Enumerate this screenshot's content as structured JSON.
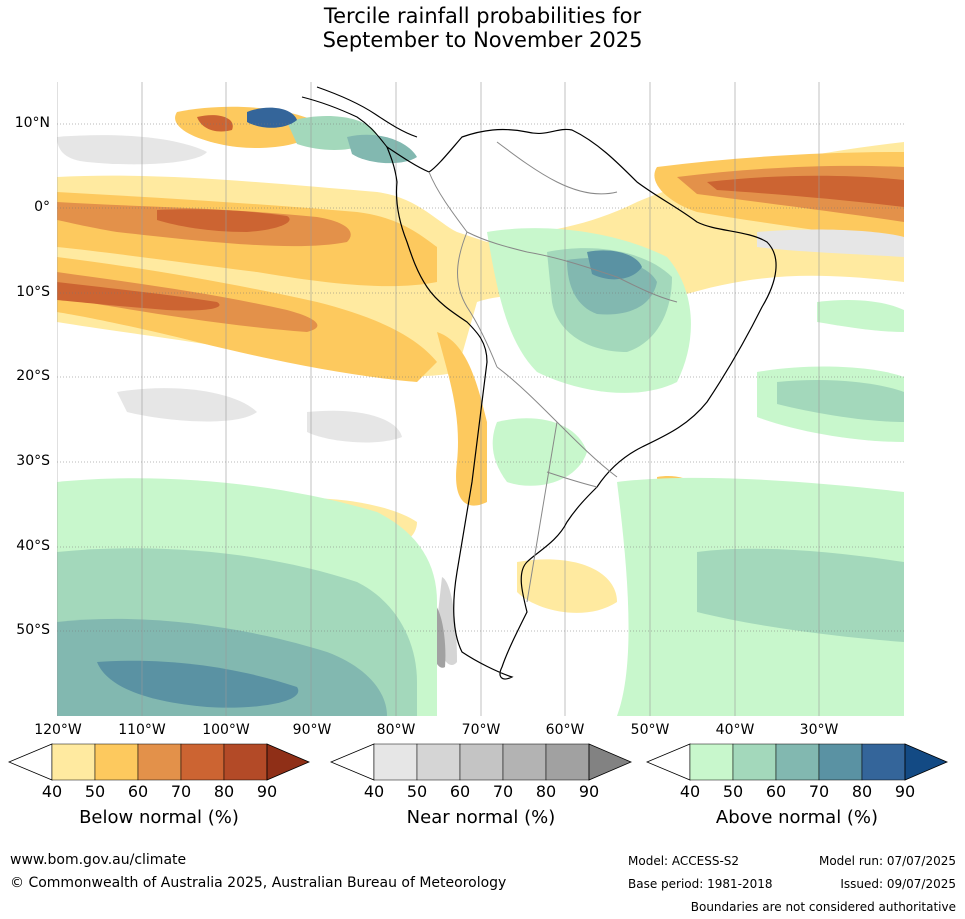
{
  "title": {
    "line1": "Tercile rainfall probabilities for",
    "line2": "September to November 2025"
  },
  "map": {
    "lat_labels": [
      "10°N",
      "0°",
      "10°S",
      "20°S",
      "30°S",
      "40°S",
      "50°S"
    ],
    "lon_labels": [
      "120°W",
      "110°W",
      "100°W",
      "90°W",
      "80°W",
      "70°W",
      "60°W",
      "50°W",
      "40°W",
      "30°W"
    ]
  },
  "colorbars": [
    {
      "title": "Below normal (%)",
      "ticks": [
        "40",
        "50",
        "60",
        "70",
        "80",
        "90"
      ],
      "colors": [
        "#ffeaa0",
        "#fdc95e",
        "#e3914a",
        "#cc6432",
        "#b34a27",
        "#8f2f17"
      ]
    },
    {
      "title": "Near normal (%)",
      "ticks": [
        "40",
        "50",
        "60",
        "70",
        "80",
        "90"
      ],
      "colors": [
        "#e6e6e6",
        "#d5d5d5",
        "#c4c4c4",
        "#b3b3b3",
        "#a1a1a1",
        "#828282"
      ]
    },
    {
      "title": "Above normal (%)",
      "ticks": [
        "40",
        "50",
        "60",
        "70",
        "80",
        "90"
      ],
      "colors": [
        "#c8f7cc",
        "#a3d8bb",
        "#82b8b0",
        "#5a92a3",
        "#34659a",
        "#134a84"
      ]
    }
  ],
  "footer": {
    "website": "www.bom.gov.au/climate",
    "copyright": "© Commonwealth of Australia 2025, Australian Bureau of Meteorology",
    "model": "Model: ACCESS-S2",
    "base_period": "Base period: 1981-2018",
    "model_run": "Model run: 07/07/2025",
    "issued": "Issued: 09/07/2025",
    "disclaimer": "Boundaries are not considered authoritative"
  }
}
